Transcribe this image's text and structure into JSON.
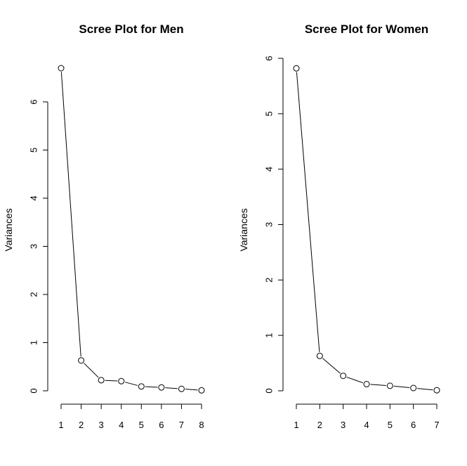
{
  "chart_data": [
    {
      "type": "line",
      "title": "Scree Plot for Men",
      "xlabel": "",
      "ylabel": "Variances",
      "x": [
        1,
        2,
        3,
        4,
        5,
        6,
        7,
        8
      ],
      "values": [
        6.7,
        0.63,
        0.22,
        0.2,
        0.09,
        0.07,
        0.04,
        0.01
      ],
      "xticks": [
        1,
        2,
        3,
        4,
        5,
        6,
        7,
        8
      ],
      "yticks": [
        0,
        1,
        2,
        3,
        4,
        5,
        6
      ],
      "xlim": [
        1,
        8
      ],
      "ylim": [
        0,
        6.7
      ],
      "grid": false,
      "markers": "open-circle"
    },
    {
      "type": "line",
      "title": "Scree Plot for Women",
      "xlabel": "",
      "ylabel": "Variances",
      "x": [
        1,
        2,
        3,
        4,
        5,
        6,
        7
      ],
      "values": [
        5.82,
        0.63,
        0.27,
        0.12,
        0.09,
        0.05,
        0.01
      ],
      "xticks": [
        1,
        2,
        3,
        4,
        5,
        6,
        7
      ],
      "yticks": [
        0,
        1,
        2,
        3,
        4,
        5,
        6
      ],
      "xlim": [
        1,
        7
      ],
      "ylim": [
        0,
        6
      ],
      "grid": false,
      "markers": "open-circle"
    }
  ]
}
